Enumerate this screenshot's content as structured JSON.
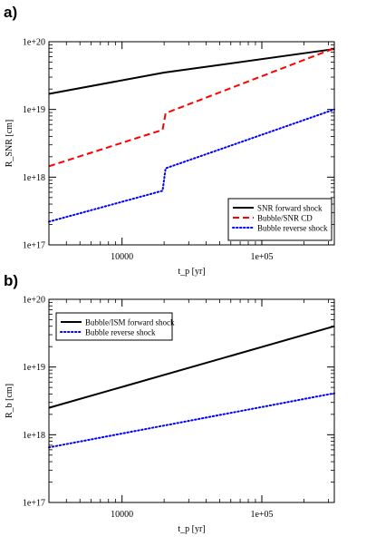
{
  "panels": [
    {
      "label": "a)"
    },
    {
      "label": "b)"
    }
  ],
  "chart_data": [
    {
      "type": "line",
      "title": "",
      "xlabel": "t_p [yr]",
      "ylabel": "R_SNR [cm]",
      "xscale": "log",
      "yscale": "log",
      "xlim": [
        3000,
        330000
      ],
      "ylim": [
        1e+17,
        1e+20
      ],
      "xticks": [
        {
          "value": 10000,
          "label": "10000"
        },
        {
          "value": 100000,
          "label": "1e+05"
        }
      ],
      "yticks": [
        {
          "value": 1e+17,
          "label": "1e+17"
        },
        {
          "value": 1e+18,
          "label": "1e+18"
        },
        {
          "value": 1e+19,
          "label": "1e+19"
        },
        {
          "value": 1e+20,
          "label": "1e+20"
        }
      ],
      "legend_position": "bottom-right",
      "series": [
        {
          "name": "SNR forward shock",
          "color": "#000000",
          "style": "solid",
          "x": [
            3000,
            20000,
            330000
          ],
          "y": [
            1.7e+19,
            3.5e+19,
            7.8e+19
          ]
        },
        {
          "name": "Bubble/SNR CD",
          "color": "#ff0000",
          "style": "dashed",
          "x": [
            3000,
            19500,
            20500,
            330000
          ],
          "y": [
            1.45e+18,
            5e+18,
            8.8e+18,
            8e+19
          ]
        },
        {
          "name": "Bubble reverse shock",
          "color": "#0000ff",
          "style": "dotted",
          "x": [
            3000,
            19500,
            20500,
            330000
          ],
          "y": [
            2.2e+17,
            6.3e+17,
            1.35e+18,
            1e+19
          ]
        }
      ]
    },
    {
      "type": "line",
      "title": "",
      "xlabel": "t_p [yr]",
      "ylabel": "R_b [cm]",
      "xscale": "log",
      "yscale": "log",
      "xlim": [
        3000,
        330000
      ],
      "ylim": [
        1e+17,
        1e+20
      ],
      "xticks": [
        {
          "value": 10000,
          "label": "10000"
        },
        {
          "value": 100000,
          "label": "1e+05"
        }
      ],
      "yticks": [
        {
          "value": 1e+17,
          "label": "1e+17"
        },
        {
          "value": 1e+18,
          "label": "1e+18"
        },
        {
          "value": 1e+19,
          "label": "1e+19"
        },
        {
          "value": 1e+20,
          "label": "1e+20"
        }
      ],
      "legend_position": "top-left",
      "series": [
        {
          "name": "Bubble/ISM forward shock",
          "color": "#000000",
          "style": "solid",
          "x": [
            3000,
            330000
          ],
          "y": [
            2.5e+18,
            4e+19
          ]
        },
        {
          "name": "Bubble reverse shock",
          "color": "#0000ff",
          "style": "dotted",
          "x": [
            3000,
            330000
          ],
          "y": [
            6.5e+17,
            4.1e+18
          ]
        }
      ]
    }
  ]
}
